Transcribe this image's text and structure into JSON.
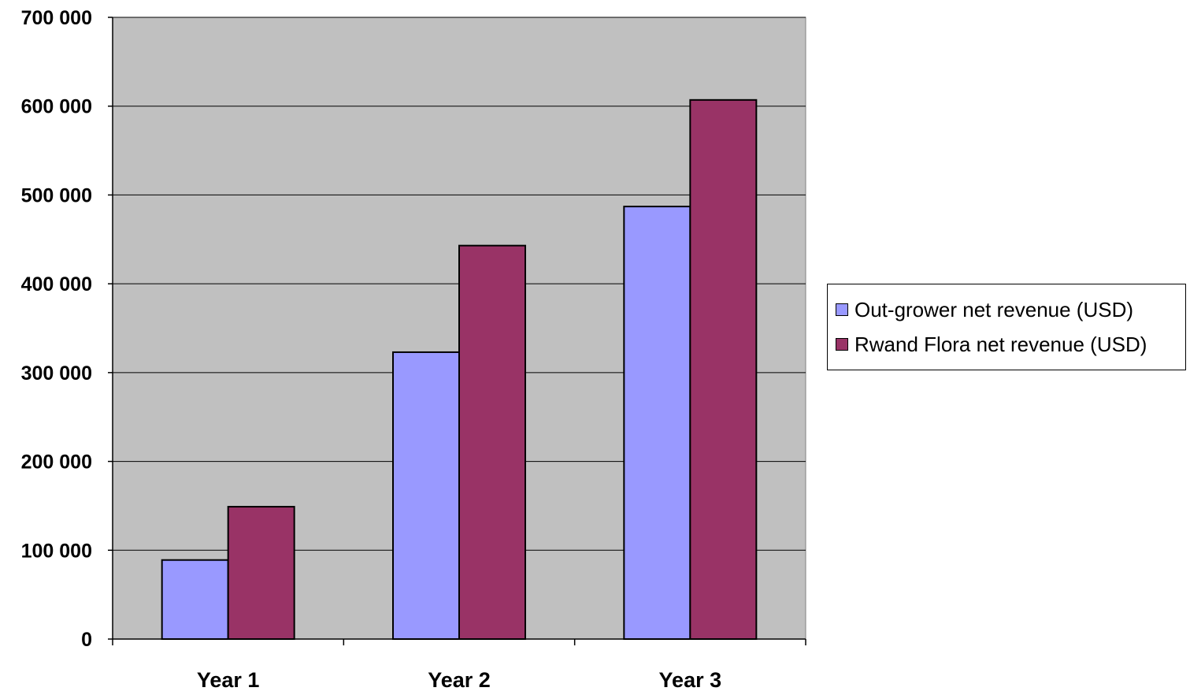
{
  "chart_data": {
    "type": "bar",
    "title": "",
    "xlabel": "",
    "ylabel": "",
    "categories": [
      "Year 1",
      "Year 2",
      "Year 3"
    ],
    "series": [
      {
        "name": "Out-grower net revenue (USD)",
        "values": [
          89000,
          323000,
          487000
        ],
        "color": "#9999ff"
      },
      {
        "name": "Rwand Flora net revenue (USD)",
        "values": [
          149000,
          443000,
          607000
        ],
        "color": "#993366"
      }
    ],
    "ylim": [
      0,
      700000
    ],
    "yticks": [
      0,
      100000,
      200000,
      300000,
      400000,
      500000,
      600000,
      700000
    ],
    "ytick_labels": [
      "0",
      "100 000",
      "200 000",
      "300 000",
      "400 000",
      "500 000",
      "600 000",
      "700 000"
    ],
    "plot_background": "#c0c0c0",
    "grid": true,
    "legend_position": "right"
  }
}
